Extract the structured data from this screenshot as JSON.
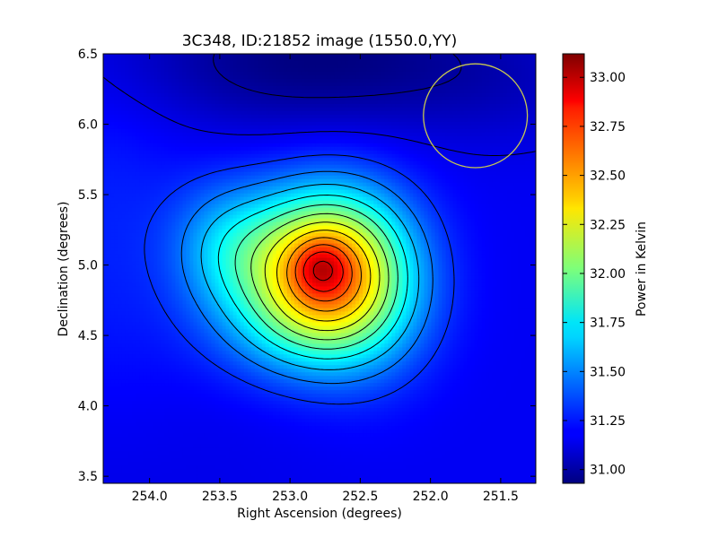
{
  "chart_data": {
    "type": "heatmap",
    "title": "3C348, ID:21852 image (1550.0,YY)",
    "xlabel": "Right Ascension (degrees)",
    "ylabel": "Declination (degrees)",
    "xlim": [
      254.33,
      251.25
    ],
    "ylim": [
      3.45,
      6.5
    ],
    "x_ticks": [
      254.0,
      253.5,
      253.0,
      252.5,
      252.0,
      251.5
    ],
    "x_tick_labels": [
      "254.0",
      "253.5",
      "253.0",
      "252.5",
      "252.0",
      "251.5"
    ],
    "y_ticks": [
      3.5,
      4.0,
      4.5,
      5.0,
      5.5,
      6.0,
      6.5
    ],
    "y_tick_labels": [
      "3.5",
      "4.0",
      "4.5",
      "5.0",
      "5.5",
      "6.0",
      "6.5"
    ],
    "colormap": "jet",
    "colorbar": {
      "label": "Power in Kelvin",
      "range": [
        30.93,
        33.12
      ],
      "ticks": [
        31.0,
        31.25,
        31.5,
        31.75,
        32.0,
        32.25,
        32.5,
        32.75,
        33.0
      ],
      "tick_labels": [
        "31.00",
        "31.25",
        "31.50",
        "31.75",
        "32.00",
        "32.25",
        "32.50",
        "32.75",
        "33.00"
      ]
    },
    "peak": {
      "ra": 252.78,
      "dec": 4.98,
      "value": 33.12
    },
    "background_level": 31.18,
    "contour_color": "#000000",
    "beam_marker": {
      "shape": "circle",
      "ra": 251.68,
      "dec": 6.06,
      "radius_deg": 0.37,
      "color": "#c8c850"
    }
  }
}
